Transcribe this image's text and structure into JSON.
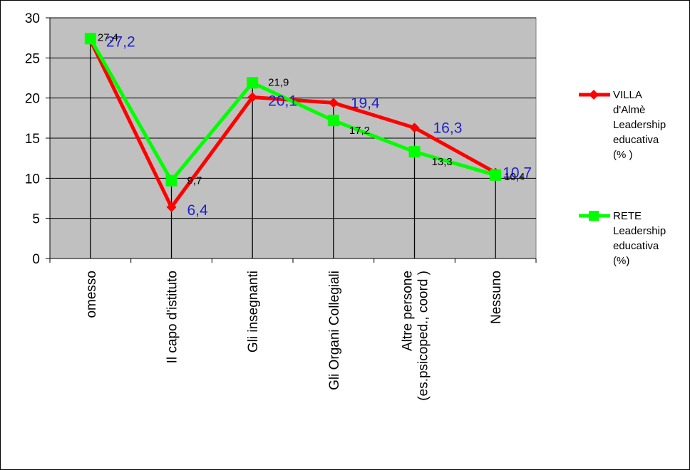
{
  "chart_data": {
    "type": "line",
    "title": "",
    "xlabel": "",
    "ylabel": "",
    "ylim": [
      0,
      30
    ],
    "yticks": [
      "0",
      "5",
      "10",
      "15",
      "20",
      "25",
      "30"
    ],
    "grid": true,
    "legend_position": "right",
    "categories": [
      [
        "omesso"
      ],
      [
        "Il capo d'istituto"
      ],
      [
        "Gli insegnanti"
      ],
      [
        "Gli Organi Collegiali"
      ],
      [
        "Altre persone",
        "(es.psicoped., coord )"
      ],
      [
        "Nessuno"
      ]
    ],
    "series": [
      {
        "name": [
          "VILLA",
          "d'Almè",
          "Leadership",
          "educativa",
          "(% )"
        ],
        "color": "#ff0000",
        "marker": "diamond",
        "values": [
          27.2,
          6.4,
          20.1,
          19.4,
          16.3,
          10.7
        ],
        "labels": [
          "27,2",
          "6,4",
          "20,1",
          "19,4",
          "16,3",
          "10,7"
        ]
      },
      {
        "name": [
          "RETE",
          "Leadership",
          "educativa",
          "(%)"
        ],
        "color": "#00ff00",
        "marker": "square",
        "values": [
          27.4,
          9.7,
          21.9,
          17.2,
          13.3,
          10.4
        ],
        "labels": [
          "27,4",
          "9,7",
          "21,9",
          "17,2",
          "13,3",
          "10,4"
        ]
      }
    ]
  }
}
